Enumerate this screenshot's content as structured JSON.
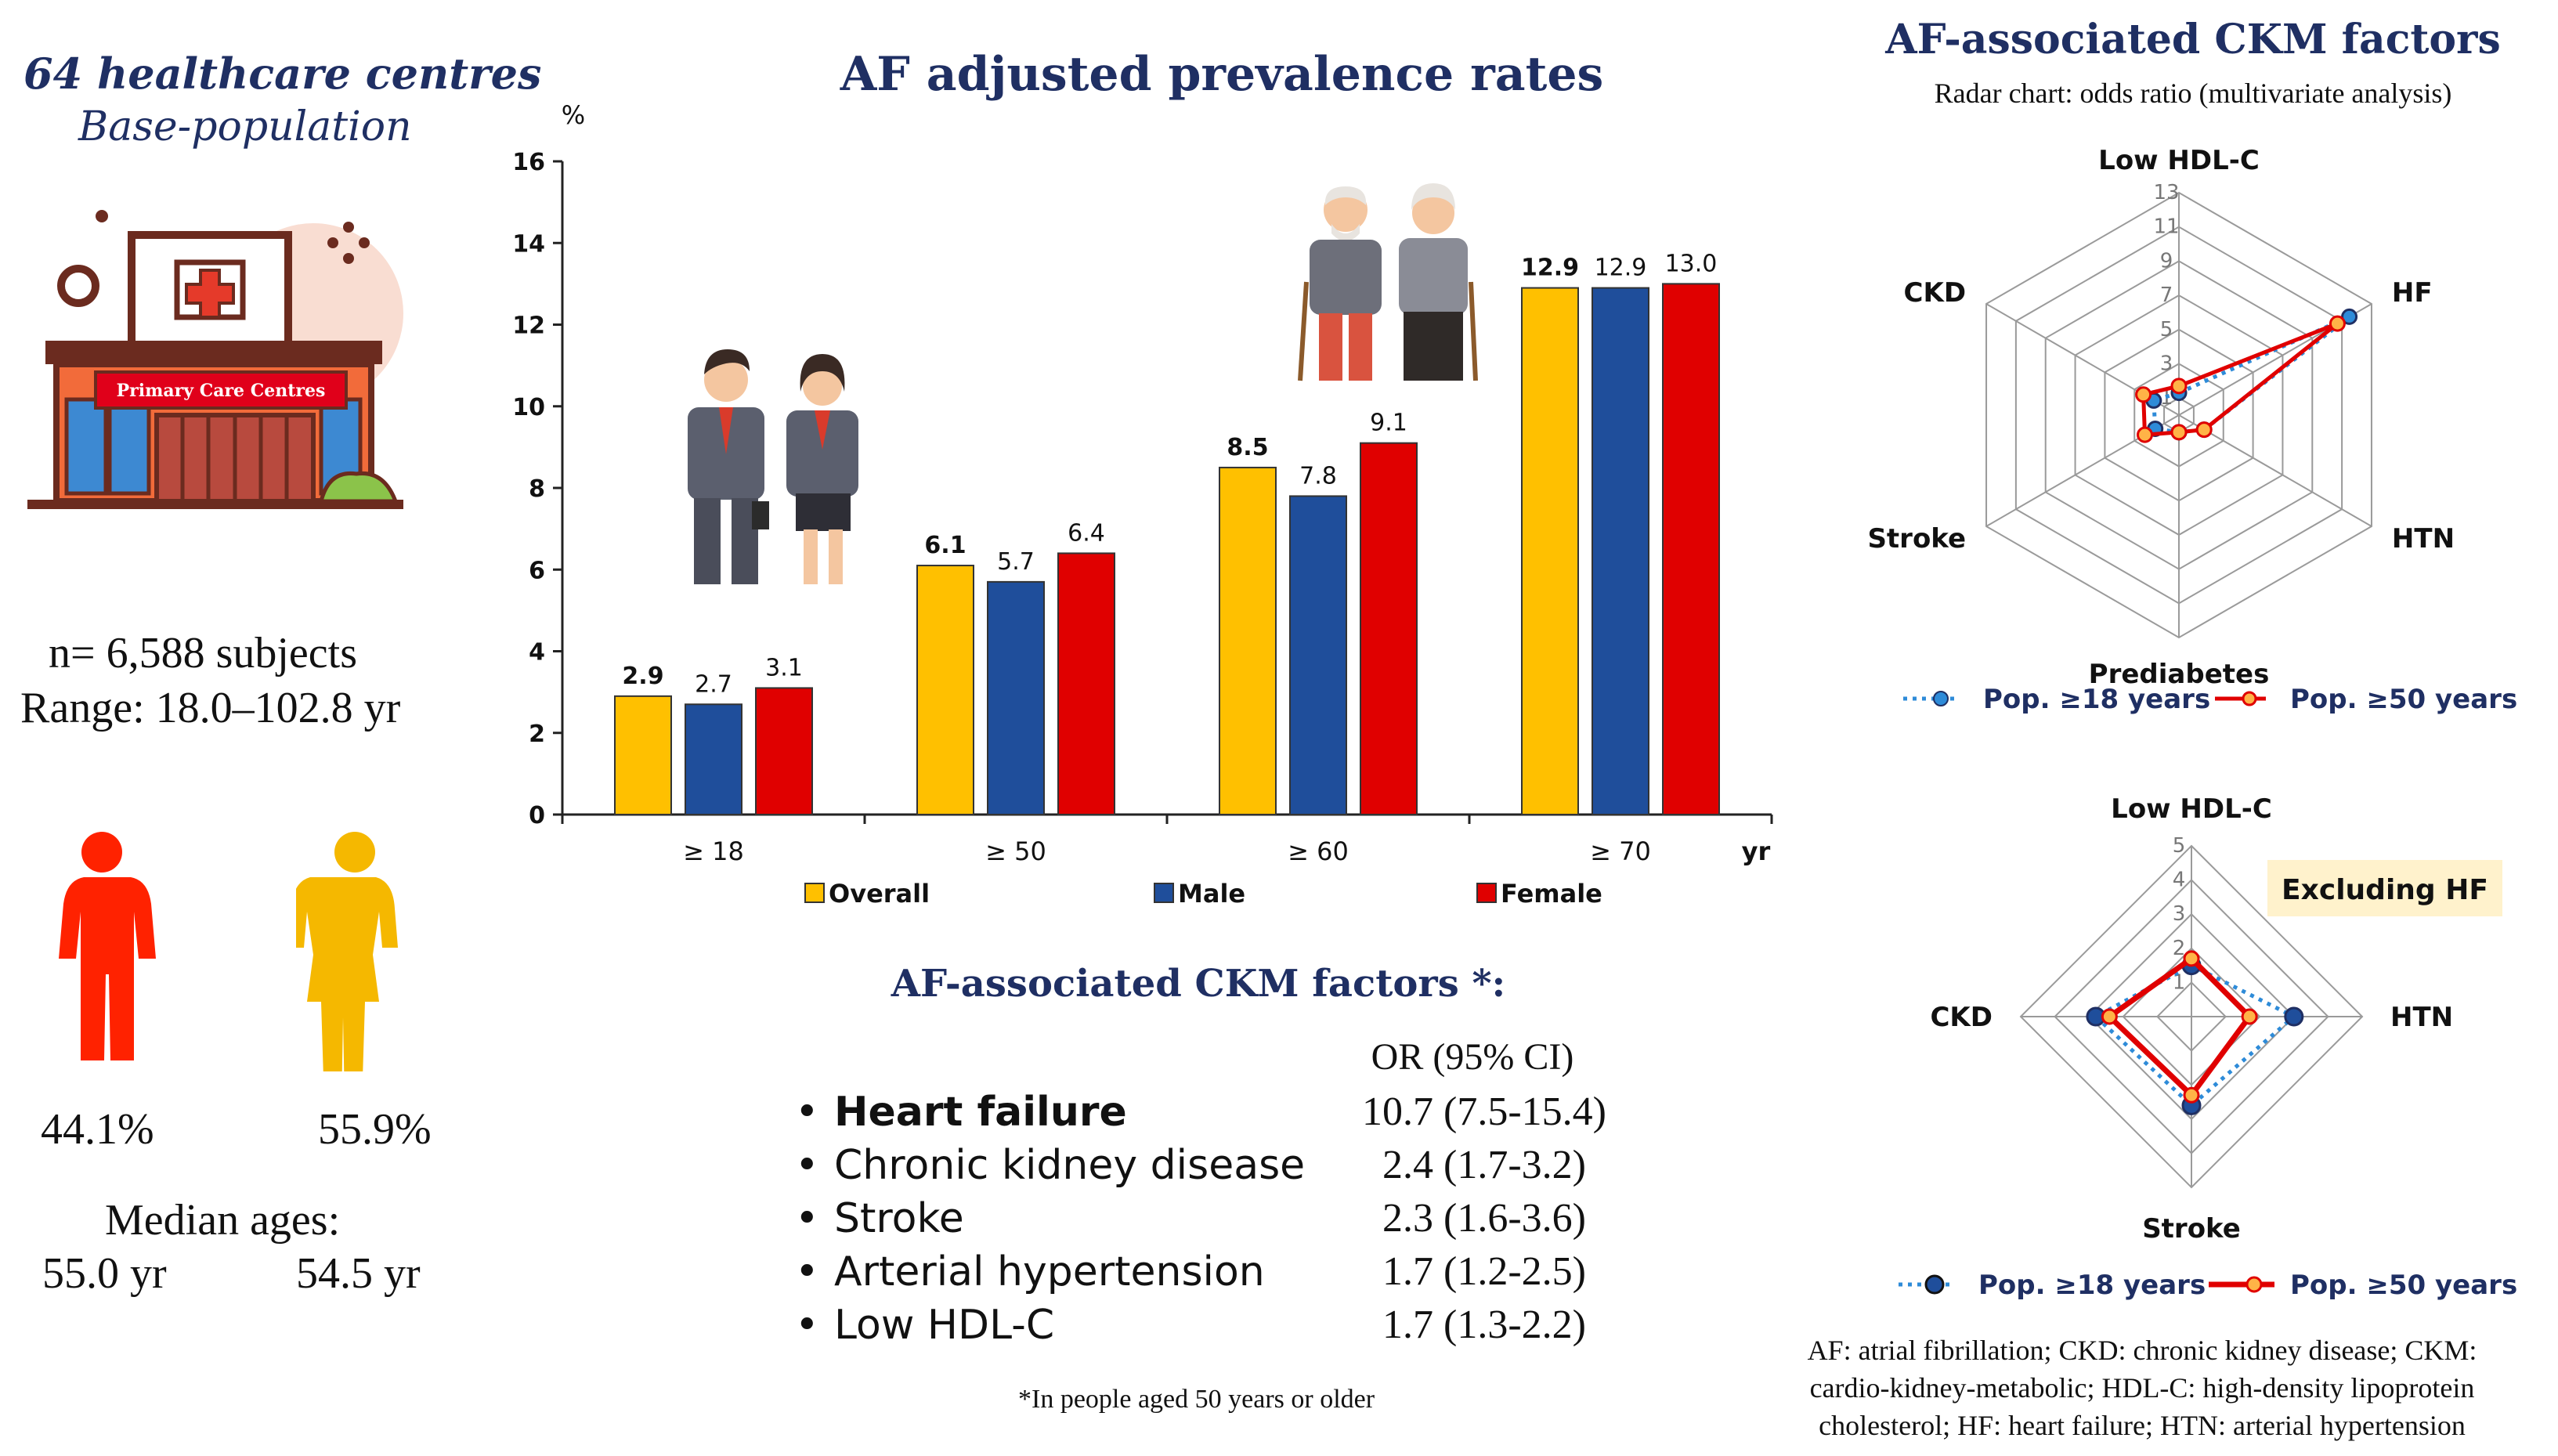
{
  "left": {
    "title": "64 healthcare centres",
    "subtitle": "Base-population",
    "sign": "Primary Care Centres",
    "n_subjects": "n= 6,588 subjects",
    "range": "Range: 18.0–102.8 yr",
    "male_pct": "44.1%",
    "female_pct": "55.9%",
    "median_label": "Median ages:",
    "male_median": "55.0 yr",
    "female_median": "54.5 yr"
  },
  "colors": {
    "overall": "#ffc000",
    "male": "#1f4e9b",
    "female": "#e00000",
    "navy": "#1f2f63",
    "blue_dot": "#2e8bd8"
  },
  "chart_data": [
    {
      "type": "bar",
      "title": "AF adjusted prevalence rates",
      "ylabel": "%",
      "xlabel": "yr",
      "ylim": [
        0,
        16
      ],
      "yticks": [
        0,
        2,
        4,
        6,
        8,
        10,
        12,
        14,
        16
      ],
      "categories": [
        "≥ 18",
        "≥ 50",
        "≥ 60",
        "≥ 70"
      ],
      "series": [
        {
          "name": "Overall",
          "values": [
            2.9,
            6.1,
            8.5,
            12.9
          ],
          "labels": [
            "2.9",
            "6.1",
            "8.5",
            "12.9"
          ]
        },
        {
          "name": "Male",
          "values": [
            2.7,
            5.7,
            7.8,
            12.9
          ],
          "labels": [
            "2.7",
            "5.7",
            "7.8",
            "12.9"
          ]
        },
        {
          "name": "Female",
          "values": [
            3.1,
            6.4,
            9.1,
            13.0
          ],
          "labels": [
            "3.1",
            "6.4",
            "9.1",
            "13.0"
          ]
        }
      ]
    },
    {
      "type": "radar",
      "title": "AF-associated CKM factors",
      "subtitle": "Radar chart: odds ratio (multivariate analysis)",
      "axes": [
        "Low HDL-C",
        "HF",
        "HTN",
        "Prediabetes",
        "Stroke",
        "CKD"
      ],
      "rmax": 13,
      "ticks": [
        1,
        3,
        5,
        7,
        9,
        11,
        13
      ],
      "series": [
        {
          "name": "Pop. ≥18 years",
          "values": [
            1.3,
            11.5,
            1.7,
            1.0,
            1.6,
            1.7
          ]
        },
        {
          "name": "Pop. ≥50 years",
          "values": [
            1.7,
            10.7,
            1.7,
            1.0,
            2.3,
            2.4
          ]
        }
      ]
    },
    {
      "type": "radar",
      "title": "Excluding HF",
      "axes": [
        "Low HDL-C",
        "HTN",
        "Stroke",
        "CKD"
      ],
      "rmax": 5,
      "ticks": [
        1,
        2,
        3,
        4,
        5
      ],
      "series": [
        {
          "name": "Pop. ≥18 years",
          "values": [
            1.5,
            3.0,
            2.6,
            2.8
          ]
        },
        {
          "name": "Pop. ≥50 years",
          "values": [
            1.7,
            1.7,
            2.3,
            2.4
          ]
        }
      ]
    }
  ],
  "legend": {
    "overall": "Overall",
    "male": "Male",
    "female": "Female"
  },
  "ckm": {
    "title": "AF-associated CKM factors *:",
    "or_header": "OR (95% CI)",
    "items": [
      {
        "name": "Heart failure",
        "or": "10.7 (7.5-15.4)"
      },
      {
        "name": "Chronic kidney disease",
        "or": "2.4 (1.7-3.2)"
      },
      {
        "name": "Stroke",
        "or": "2.3 (1.6-3.6)"
      },
      {
        "name": "Arterial hypertension",
        "or": "1.7 (1.2-2.5)"
      },
      {
        "name": "Low HDL-C",
        "or": "1.7 (1.3-2.2)"
      }
    ],
    "footnote": "*In people aged 50 years or older"
  },
  "radar_top": {
    "title": "AF-associated CKM factors",
    "subtitle": "Radar chart: odds ratio (multivariate analysis)"
  },
  "radar_bottom": {
    "badge": "Excluding HF"
  },
  "abbrev": [
    "AF: atrial fibrillation; CKD: chronic kidney disease; CKM:",
    "cardio-kidney-metabolic; HDL-C: high-density lipoprotein",
    "cholesterol; HF: heart failure; HTN: arterial hypertension"
  ]
}
